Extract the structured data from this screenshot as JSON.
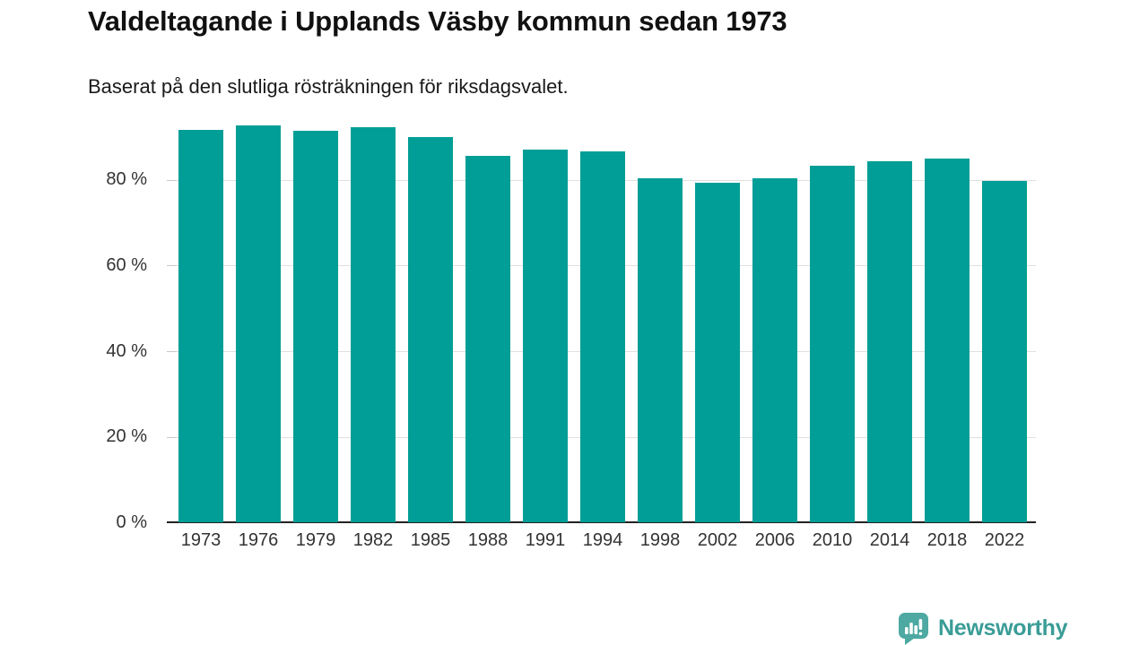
{
  "header": {
    "title": "Valdeltagande i Upplands Väsby kommun sedan 1973",
    "subtitle": "Baserat på den slutliga rösträkningen för riksdagsvalet."
  },
  "chart_data": {
    "type": "bar",
    "title": "Valdeltagande i Upplands Väsby kommun sedan 1973",
    "subtitle": "Baserat på den slutliga rösträkningen för riksdagsvalet.",
    "categories": [
      "1973",
      "1976",
      "1979",
      "1982",
      "1985",
      "1988",
      "1991",
      "1994",
      "1998",
      "2002",
      "2006",
      "2010",
      "2014",
      "2018",
      "2022"
    ],
    "values": [
      91.5,
      92.6,
      91.3,
      92.2,
      89.8,
      85.5,
      86.8,
      86.5,
      80.2,
      79.1,
      80.3,
      83.1,
      84.2,
      84.9,
      79.5
    ],
    "xlabel": "",
    "ylabel": "",
    "yticks": [
      0,
      20,
      40,
      60,
      80
    ],
    "ytick_labels": [
      "0 %",
      "20 %",
      "40 %",
      "60 %",
      "80 %"
    ],
    "ylim": [
      0,
      94
    ],
    "grid": "horizontal",
    "legend": "none",
    "bar_color": "#009e96"
  },
  "branding": {
    "logo_text": "Newsworthy",
    "logo_icon": "bar-chart-speech-bubble-icon",
    "logo_bubble_color": "#4da9a2",
    "logo_text_color": "#3a9c96"
  },
  "colors": {
    "background": "#ffffff",
    "bar": "#009e96",
    "gridline": "#e0e0e0",
    "axis_line": "#222222",
    "axis_label": "#333333",
    "title": "#111111"
  }
}
